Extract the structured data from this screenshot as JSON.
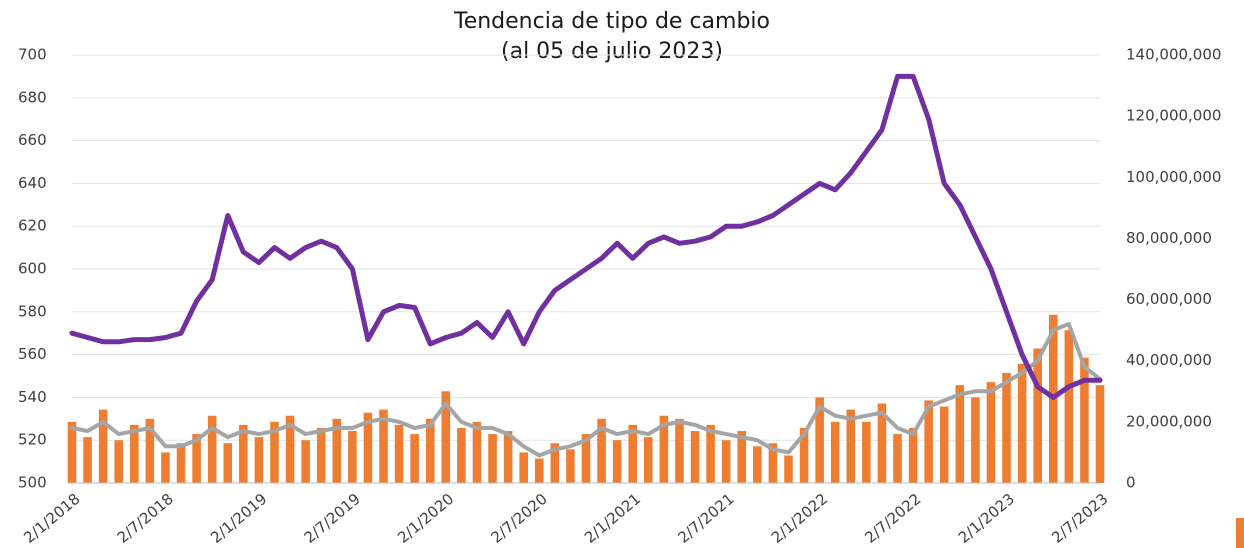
{
  "chart_data": {
    "type": "bar-line",
    "title": "Tendencia de tipo de cambio",
    "subtitle": "(al 05 de julio 2023)",
    "categories": [
      "2/1/2018",
      null,
      null,
      null,
      null,
      null,
      "2/7/2018",
      null,
      null,
      null,
      null,
      null,
      "2/1/2019",
      null,
      null,
      null,
      null,
      null,
      "2/7/2019",
      null,
      null,
      null,
      null,
      null,
      "2/1/2020",
      null,
      null,
      null,
      null,
      null,
      "2/7/2020",
      null,
      null,
      null,
      null,
      null,
      "2/1/2021",
      null,
      null,
      null,
      null,
      null,
      "2/7/2021",
      null,
      null,
      null,
      null,
      null,
      "2/1/2022",
      null,
      null,
      null,
      null,
      null,
      "2/7/2022",
      null,
      null,
      null,
      null,
      null,
      "2/1/2023",
      null,
      null,
      null,
      null,
      null,
      "2/7/2023"
    ],
    "ylim": [
      500,
      700
    ],
    "yticks": [
      500,
      520,
      540,
      560,
      580,
      600,
      620,
      640,
      660,
      680,
      700
    ],
    "y2lim": [
      0,
      140000000
    ],
    "y2ticks": [
      0,
      {
        "value": 20000000,
        "label": "20,000,000"
      },
      {
        "value": 40000000,
        "label": "40,000,000"
      },
      {
        "value": 60000000,
        "label": "60,000,000"
      },
      {
        "value": 80000000,
        "label": "80,000,000"
      },
      {
        "value": 100000000,
        "label": "100,000,000"
      },
      {
        "value": 120000000,
        "label": "120,000,000"
      },
      {
        "value": 140000000,
        "label": "140,000,000"
      }
    ],
    "grid": true,
    "series": [
      {
        "type": "bar",
        "axis": "y2",
        "color": "#ed7d31",
        "values": [
          20000000,
          15000000,
          24000000,
          14000000,
          19000000,
          21000000,
          10000000,
          13000000,
          16000000,
          22000000,
          13000000,
          19000000,
          15000000,
          20000000,
          22000000,
          14000000,
          18000000,
          21000000,
          17000000,
          23000000,
          24000000,
          19000000,
          16000000,
          21000000,
          30000000,
          18000000,
          20000000,
          16000000,
          17000000,
          10000000,
          8000000,
          13000000,
          11000000,
          16000000,
          21000000,
          14000000,
          19000000,
          15000000,
          22000000,
          21000000,
          17000000,
          19000000,
          14000000,
          17000000,
          12000000,
          13000000,
          9000000,
          18000000,
          28000000,
          20000000,
          24000000,
          20000000,
          26000000,
          16000000,
          18000000,
          27000000,
          25000000,
          32000000,
          28000000,
          33000000,
          36000000,
          39000000,
          44000000,
          55000000,
          50000000,
          41000000,
          32000000
        ]
      },
      {
        "type": "line",
        "axis": "y2",
        "color": "#a5a5a5",
        "values": [
          18000000,
          17000000,
          20000000,
          16000000,
          17000000,
          18000000,
          12000000,
          12000000,
          14000000,
          18000000,
          15000000,
          17000000,
          16000000,
          17000000,
          19000000,
          16000000,
          17000000,
          18000000,
          18000000,
          20000000,
          21000000,
          20000000,
          18000000,
          19000000,
          26000000,
          20000000,
          18000000,
          18000000,
          16000000,
          12000000,
          9000000,
          11000000,
          12000000,
          14000000,
          18000000,
          16000000,
          17000000,
          16000000,
          19000000,
          20000000,
          19000000,
          17000000,
          16000000,
          15000000,
          14000000,
          11000000,
          10000000,
          16000000,
          25000000,
          22000000,
          21000000,
          22000000,
          23000000,
          18000000,
          16000000,
          25000000,
          27000000,
          29000000,
          30000000,
          30000000,
          33000000,
          36000000,
          40000000,
          50000000,
          52000000,
          38000000,
          34000000
        ]
      },
      {
        "type": "line",
        "axis": "y",
        "color": "#7030a0",
        "values": [
          570,
          568,
          566,
          566,
          567,
          567,
          568,
          570,
          585,
          595,
          625,
          608,
          603,
          610,
          605,
          610,
          613,
          610,
          600,
          567,
          580,
          583,
          582,
          565,
          568,
          570,
          575,
          568,
          580,
          565,
          580,
          590,
          595,
          600,
          605,
          612,
          605,
          612,
          615,
          612,
          613,
          615,
          620,
          620,
          622,
          625,
          630,
          635,
          640,
          637,
          645,
          655,
          665,
          690,
          690,
          670,
          640,
          630,
          615,
          600,
          580,
          560,
          545,
          540,
          545,
          548,
          548
        ]
      }
    ]
  }
}
